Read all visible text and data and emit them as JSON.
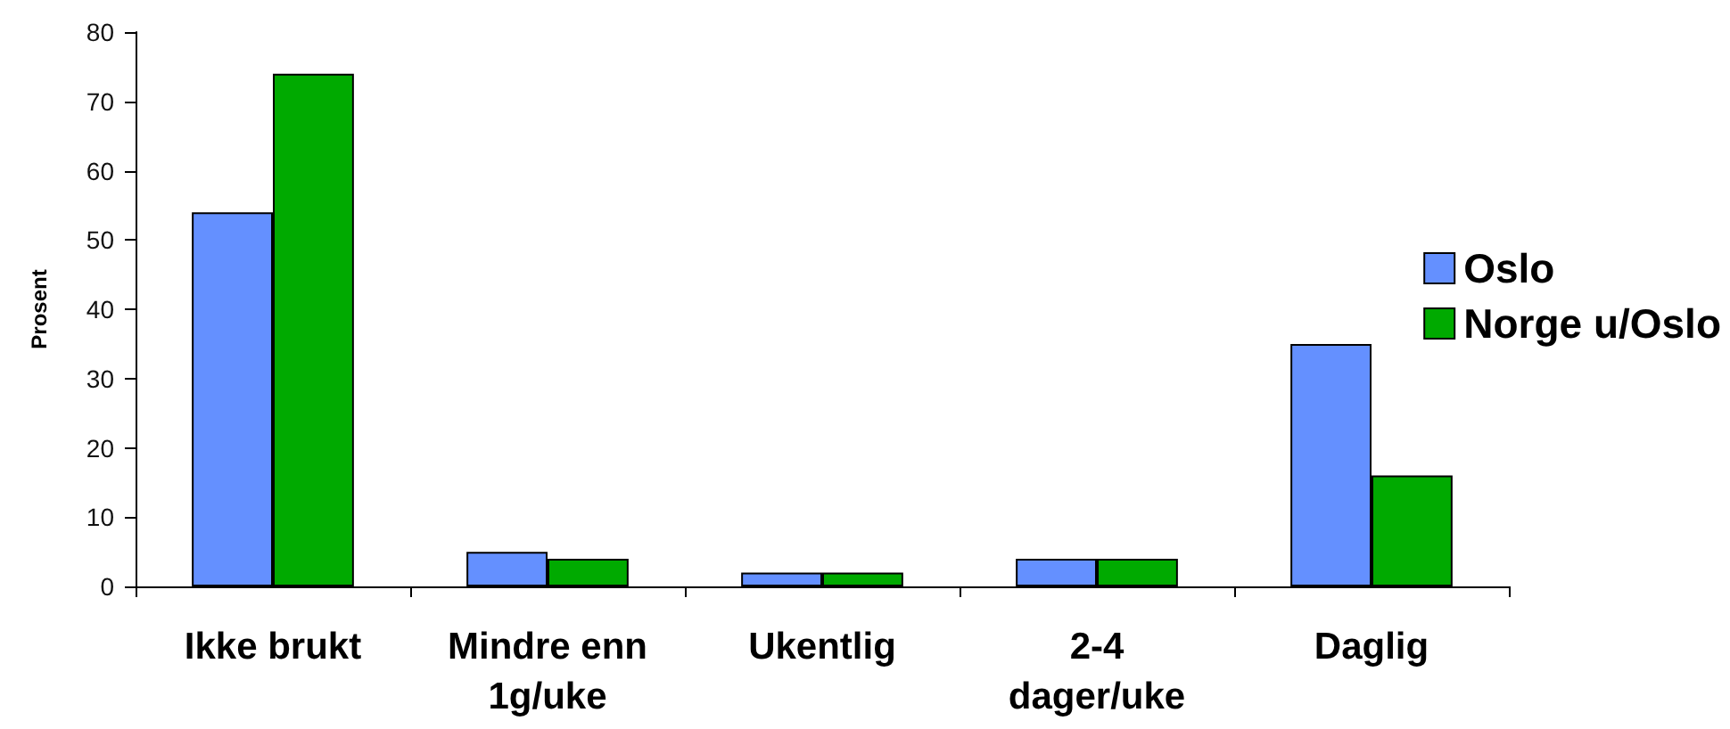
{
  "chart_data": {
    "type": "bar",
    "ylabel": "Prosent",
    "categories": [
      "Ikke brukt",
      "Mindre enn\n1g/uke",
      "Ukentlig",
      "2-4\ndager/uke",
      "Daglig"
    ],
    "series": [
      {
        "name": "Oslo",
        "color": "#6490ff",
        "values": [
          54,
          5,
          2,
          4,
          35
        ]
      },
      {
        "name": "Norge u/Oslo",
        "color": "#00aa00",
        "values": [
          74,
          4,
          2,
          4,
          16
        ]
      }
    ],
    "ylim": [
      0,
      80
    ],
    "yticks": [
      0,
      10,
      20,
      30,
      40,
      50,
      60,
      70,
      80
    ],
    "grid": false,
    "legend": "right"
  }
}
